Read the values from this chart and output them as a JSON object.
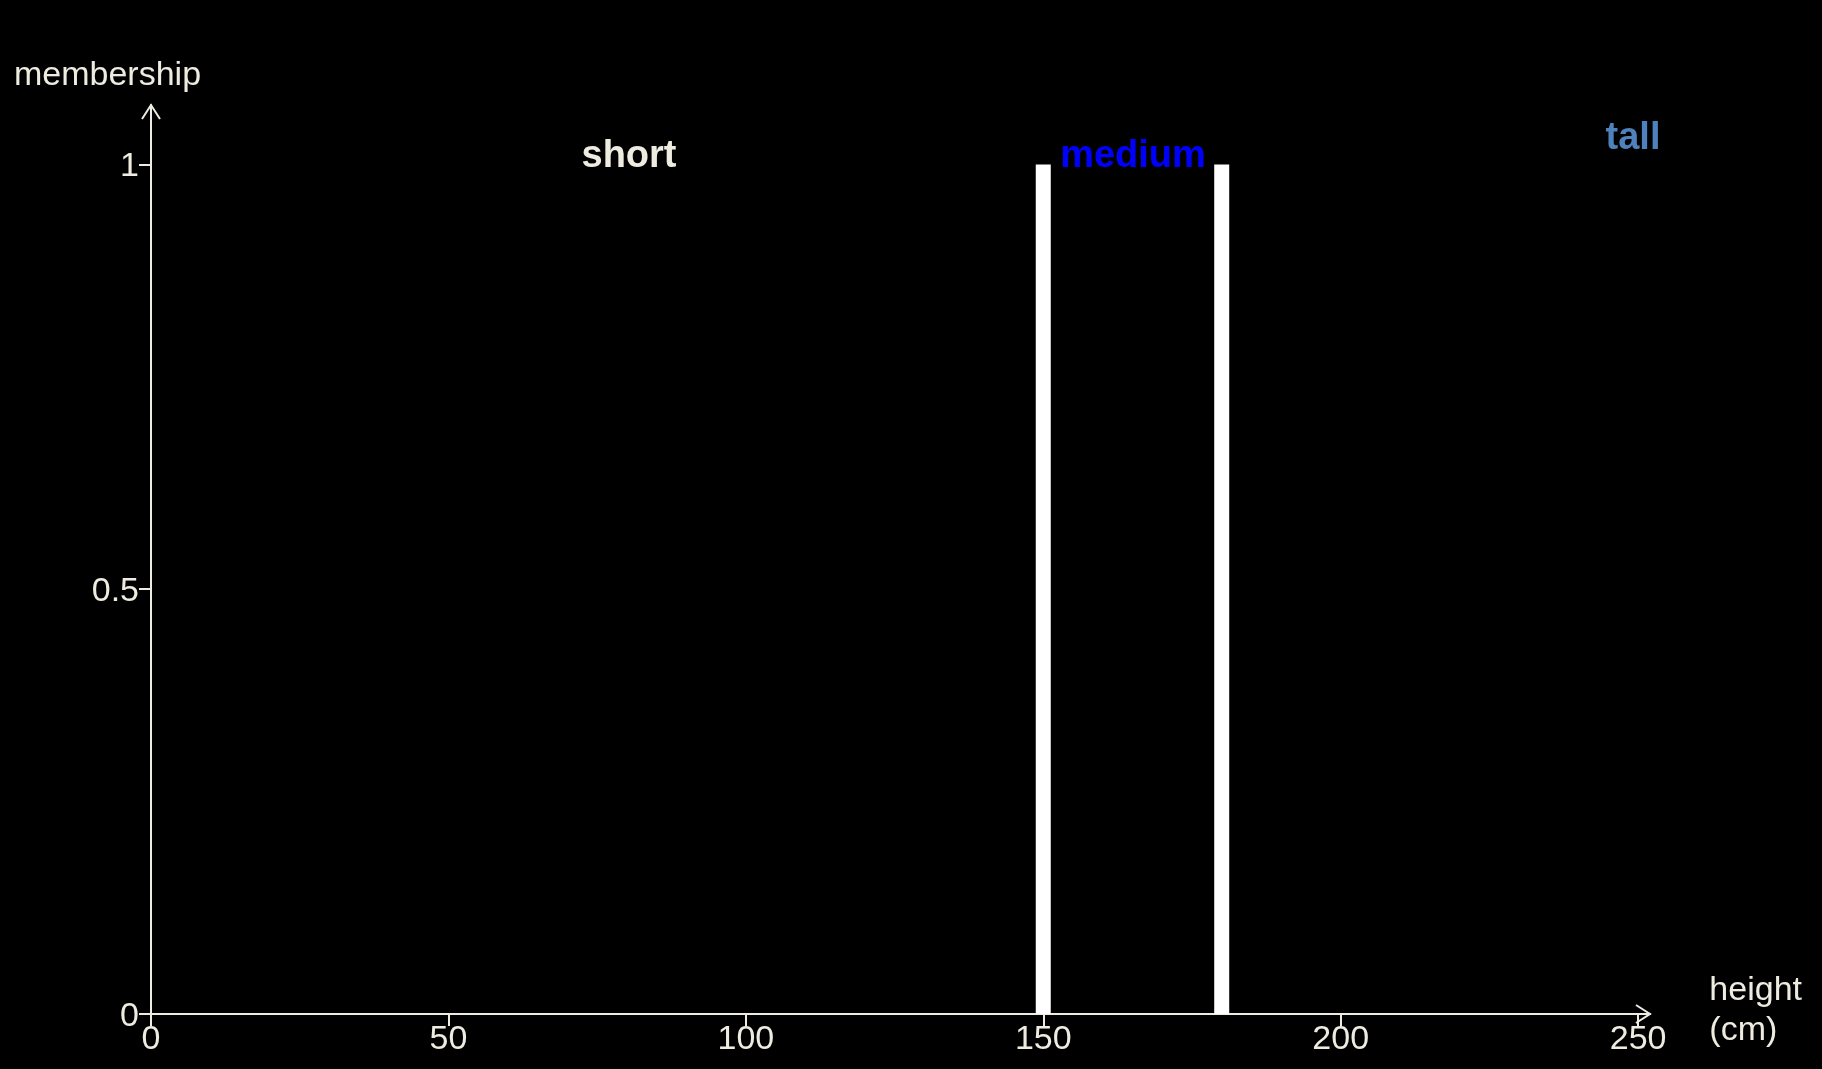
{
  "chart_data": {
    "type": "bar",
    "xlabel": "height (cm)",
    "ylabel": "membership",
    "x": [
      150,
      180
    ],
    "series": [
      {
        "color": "#ffffff",
        "values": [
          1,
          1
        ]
      }
    ],
    "annotations": [
      "short",
      "medium",
      "tall"
    ],
    "xlim": [
      0,
      252
    ],
    "xticks": [
      0,
      50,
      100,
      150,
      200,
      250
    ],
    "ylim": [
      0,
      1.07
    ],
    "yticks": [
      0,
      0.5,
      1
    ]
  }
}
